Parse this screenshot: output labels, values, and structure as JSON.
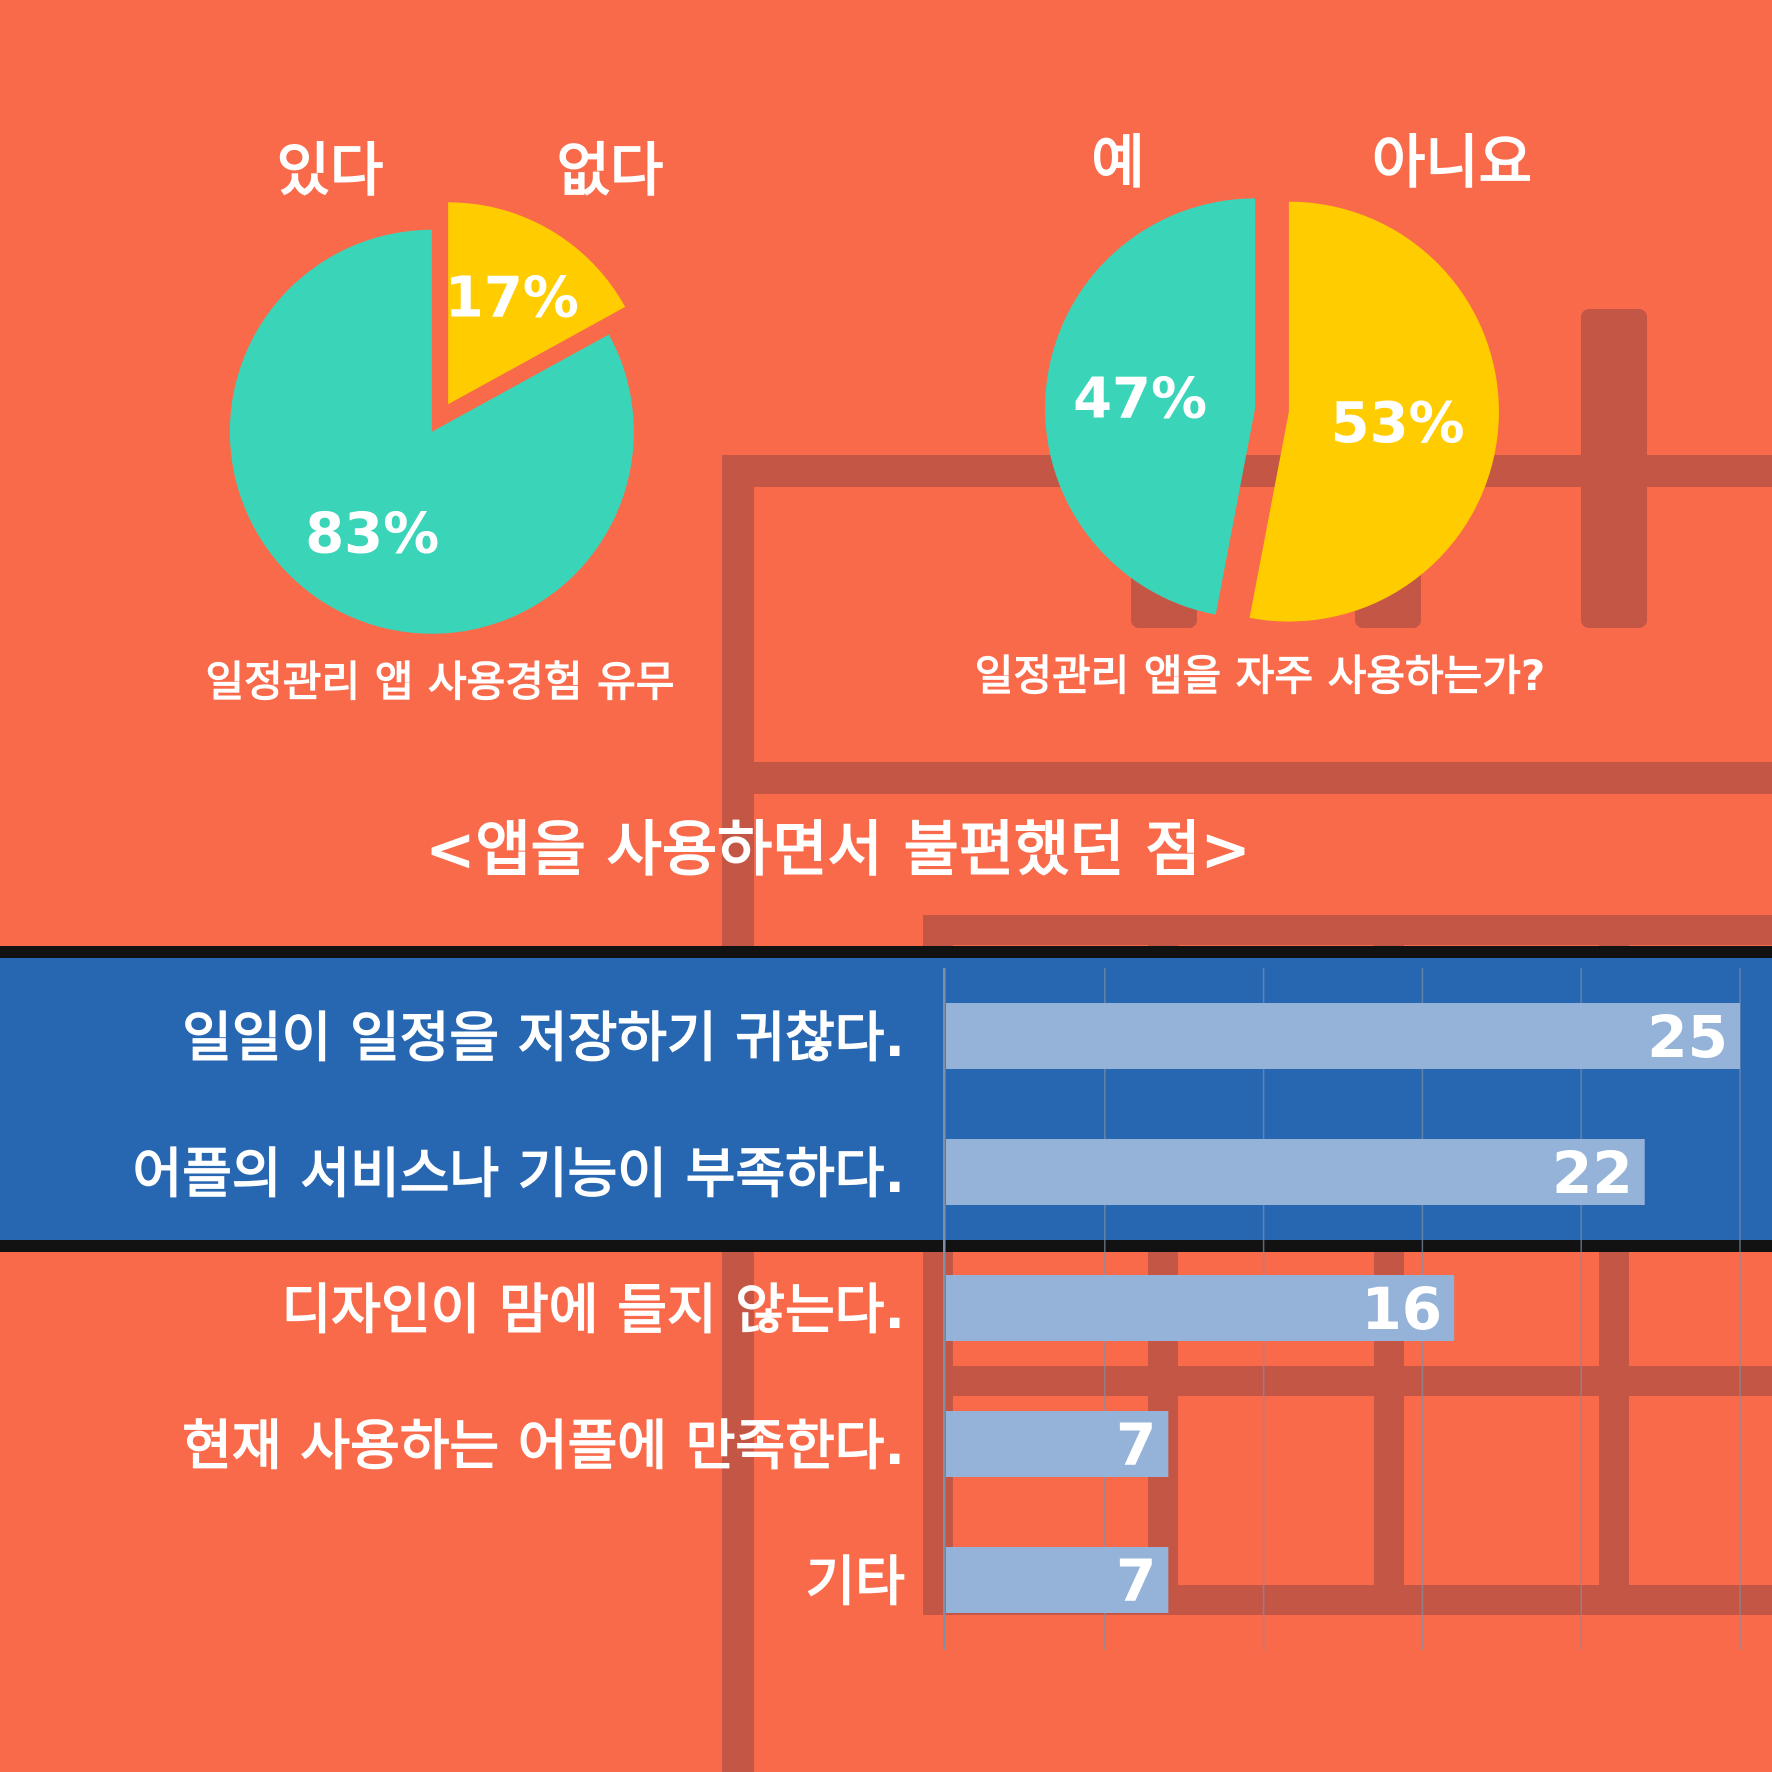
{
  "colors": {
    "background": "#f96a4a",
    "background_pattern": "#c45646",
    "band": "#2766b1",
    "teal": "#3ad4b8",
    "yellow": "#ffcc00",
    "bar": "#95b3d9",
    "grid": "#7f8fa6"
  },
  "chart_data": [
    {
      "type": "pie",
      "title": "일정관리 앱 사용경험 유무",
      "slices": [
        {
          "label": "있다",
          "value": 83,
          "value_label": "83%",
          "color": "#3ad4b8"
        },
        {
          "label": "없다",
          "value": 17,
          "value_label": "17%",
          "color": "#ffcc00"
        }
      ]
    },
    {
      "type": "pie",
      "title": "일정관리 앱을 자주 사용하는가?",
      "slices": [
        {
          "label": "예",
          "value": 47,
          "value_label": "47%",
          "color": "#3ad4b8"
        },
        {
          "label": "아니요",
          "value": 53,
          "value_label": "53%",
          "color": "#ffcc00"
        }
      ]
    },
    {
      "type": "bar",
      "orientation": "horizontal",
      "title": "<앱을 사용하면서 불편했던 점>",
      "categories": [
        "일일이 일정을 저장하기 귀찮다.",
        "어플의 서비스나 기능이 부족하다.",
        "디자인이 맘에 들지 않는다.",
        "현재 사용하는 어플에 만족한다.",
        "기타"
      ],
      "values": [
        25,
        22,
        16,
        7,
        7
      ],
      "xlim": [
        0,
        25
      ],
      "grid": true
    }
  ]
}
